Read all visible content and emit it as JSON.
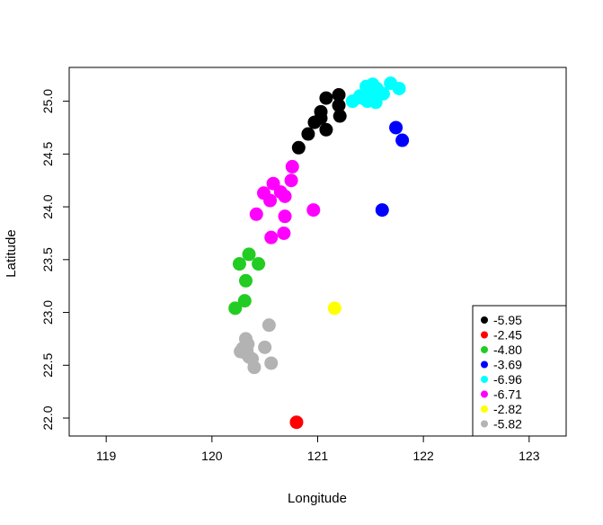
{
  "chart_data": {
    "type": "scatter",
    "title": "",
    "xlabel": "Longitude",
    "ylabel": "Latitude",
    "xlim": [
      118.65,
      123.35
    ],
    "ylim": [
      21.83,
      25.32
    ],
    "xticks": [
      "119",
      "120",
      "121",
      "122",
      "123"
    ],
    "yticks": [
      "22.0",
      "22.5",
      "23.0",
      "23.5",
      "24.0",
      "24.5",
      "25.0"
    ],
    "legend_position": "bottom-right",
    "grid": false,
    "series": [
      {
        "name": "-5.95",
        "color": "#000000",
        "points": [
          [
            120.82,
            24.56
          ],
          [
            120.91,
            24.69
          ],
          [
            120.97,
            24.8
          ],
          [
            121.03,
            24.9
          ],
          [
            121.08,
            25.03
          ],
          [
            121.08,
            24.73
          ],
          [
            121.2,
            25.06
          ],
          [
            121.2,
            24.96
          ],
          [
            121.21,
            24.86
          ],
          [
            121.03,
            24.84
          ]
        ]
      },
      {
        "name": "-2.45",
        "color": "#ff0000",
        "points": [
          [
            120.8,
            21.96
          ]
        ]
      },
      {
        "name": "-4.80",
        "color": "#22cc22",
        "points": [
          [
            120.26,
            23.46
          ],
          [
            120.35,
            23.55
          ],
          [
            120.44,
            23.46
          ],
          [
            120.32,
            23.3
          ],
          [
            120.31,
            23.11
          ],
          [
            120.22,
            23.04
          ]
        ]
      },
      {
        "name": "-3.69",
        "color": "#0000ff",
        "points": [
          [
            121.61,
            23.97
          ],
          [
            121.74,
            24.75
          ],
          [
            121.8,
            24.63
          ]
        ]
      },
      {
        "name": "-6.96",
        "color": "#00ffff",
        "points": [
          [
            121.33,
            25.0
          ],
          [
            121.4,
            25.05
          ],
          [
            121.46,
            25.14
          ],
          [
            121.52,
            25.16
          ],
          [
            121.56,
            25.12
          ],
          [
            121.62,
            25.07
          ],
          [
            121.69,
            25.17
          ],
          [
            121.77,
            25.12
          ],
          [
            121.47,
            25.0
          ],
          [
            121.55,
            24.99
          ],
          [
            121.42,
            25.03
          ],
          [
            121.5,
            25.07
          ]
        ]
      },
      {
        "name": "-6.71",
        "color": "#ff00ff",
        "points": [
          [
            120.76,
            24.38
          ],
          [
            120.75,
            24.25
          ],
          [
            120.58,
            24.22
          ],
          [
            120.49,
            24.13
          ],
          [
            120.65,
            24.14
          ],
          [
            120.55,
            24.06
          ],
          [
            120.69,
            24.1
          ],
          [
            120.42,
            23.93
          ],
          [
            120.69,
            23.91
          ],
          [
            120.96,
            23.97
          ],
          [
            120.68,
            23.75
          ],
          [
            120.56,
            23.71
          ]
        ]
      },
      {
        "name": "-2.82",
        "color": "#ffff00",
        "points": [
          [
            121.16,
            23.04
          ]
        ]
      },
      {
        "name": "-5.82",
        "color": "#b3b3b3",
        "points": [
          [
            120.54,
            22.88
          ],
          [
            120.32,
            22.75
          ],
          [
            120.34,
            22.7
          ],
          [
            120.29,
            22.66
          ],
          [
            120.31,
            22.62
          ],
          [
            120.35,
            22.58
          ],
          [
            120.38,
            22.56
          ],
          [
            120.5,
            22.67
          ],
          [
            120.4,
            22.48
          ],
          [
            120.56,
            22.52
          ],
          [
            120.33,
            22.64
          ],
          [
            120.27,
            22.63
          ]
        ]
      }
    ]
  }
}
